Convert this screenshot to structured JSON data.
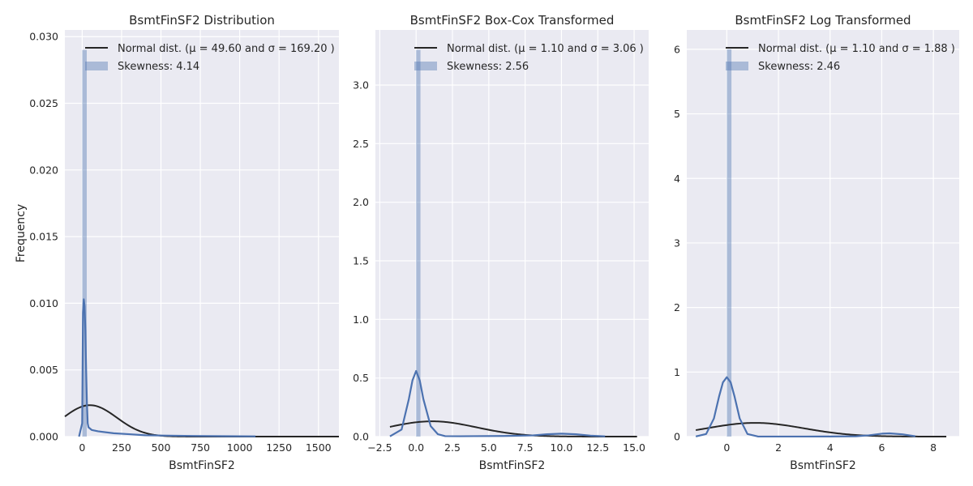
{
  "chart_data": [
    {
      "type": "histogram+kde",
      "title": "BsmtFinSF2 Distribution",
      "xlabel": "BsmtFinSF2",
      "ylabel": "Frequency",
      "xlim": [
        -110,
        1630
      ],
      "ylim": [
        0,
        0.0305
      ],
      "xticks": [
        0,
        250,
        500,
        750,
        1000,
        1250,
        1500
      ],
      "xtick_labels": [
        "0",
        "250",
        "500",
        "750",
        "1000",
        "1250",
        "1500"
      ],
      "yticks": [
        0,
        0.005,
        0.01,
        0.015,
        0.02,
        0.025,
        0.03
      ],
      "ytick_labels": [
        "0.000",
        "0.005",
        "0.010",
        "0.015",
        "0.020",
        "0.025",
        "0.030"
      ],
      "grid": true,
      "legend_position": "top-right",
      "legend": [
        {
          "label": "Normal dist. (μ =  49.60 and σ =  169.20 )",
          "kind": "line"
        },
        {
          "label": "Skewness: 4.14",
          "kind": "patch"
        }
      ],
      "hist_bars": [
        {
          "x0": 0,
          "x1": 29,
          "height": 0.029
        }
      ],
      "kde": {
        "x": [
          -20,
          0,
          5,
          10,
          15,
          20,
          25,
          30,
          35,
          40,
          60,
          100,
          200,
          300,
          400,
          500,
          700,
          900,
          1100
        ],
        "y": [
          0,
          0.001,
          0.0093,
          0.0103,
          0.0098,
          0.008,
          0.005,
          0.0025,
          0.001,
          0.0007,
          0.0005,
          0.0004,
          0.00025,
          0.00018,
          0.0001,
          8e-05,
          5e-05,
          3e-05,
          2e-05
        ]
      },
      "normal_fit": {
        "mu": 49.6,
        "sigma": 169.2,
        "x_range": [
          -110,
          1630
        ]
      }
    },
    {
      "type": "histogram+kde",
      "title": "BsmtFinSF2 Box-Cox Transformed",
      "xlabel": "BsmtFinSF2",
      "ylabel": "",
      "xlim": [
        -2.8,
        16.0
      ],
      "ylim": [
        0,
        3.47
      ],
      "xticks": [
        -2.5,
        0,
        2.5,
        5,
        7.5,
        10,
        12.5,
        15
      ],
      "xtick_labels": [
        "−2.5",
        "0.0",
        "2.5",
        "5.0",
        "7.5",
        "10.0",
        "12.5",
        "15.0"
      ],
      "yticks": [
        0,
        0.5,
        1,
        1.5,
        2,
        2.5,
        3
      ],
      "ytick_labels": [
        "0.0",
        "0.5",
        "1.0",
        "1.5",
        "2.0",
        "2.5",
        "3.0"
      ],
      "grid": true,
      "legend_position": "top-right",
      "legend": [
        {
          "label": "Normal dist. (μ =  1.10 and σ =  3.06 )",
          "kind": "line"
        },
        {
          "label": "Skewness: 2.56",
          "kind": "patch"
        }
      ],
      "hist_bars": [
        {
          "x0": 0,
          "x1": 0.3,
          "height": 3.3
        }
      ],
      "kde": {
        "x": [
          -1.8,
          -1,
          -0.5,
          -0.25,
          0,
          0.25,
          0.5,
          1,
          1.5,
          2,
          3,
          4,
          6,
          8,
          9,
          10,
          11,
          12,
          13
        ],
        "y": [
          0.002,
          0.06,
          0.32,
          0.48,
          0.56,
          0.48,
          0.32,
          0.09,
          0.02,
          0.004,
          0.003,
          0.004,
          0.005,
          0.01,
          0.02,
          0.025,
          0.02,
          0.008,
          0.002
        ]
      },
      "normal_fit": {
        "mu": 1.1,
        "sigma": 3.06,
        "x_range": [
          -1.8,
          15.2
        ]
      }
    },
    {
      "type": "histogram+kde",
      "title": "BsmtFinSF2 Log Transformed",
      "xlabel": "BsmtFinSF2",
      "ylabel": "",
      "xlim": [
        -1.55,
        9.0
      ],
      "ylim": [
        0,
        6.3
      ],
      "xticks": [
        0,
        2,
        4,
        6,
        8
      ],
      "xtick_labels": [
        "0",
        "2",
        "4",
        "6",
        "8"
      ],
      "yticks": [
        0,
        1,
        2,
        3,
        4,
        5,
        6
      ],
      "ytick_labels": [
        "0",
        "1",
        "2",
        "3",
        "4",
        "5",
        "6"
      ],
      "grid": true,
      "legend_position": "top-right",
      "legend": [
        {
          "label": "Normal dist. (μ =  1.10 and σ =  1.88 )",
          "kind": "line"
        },
        {
          "label": "Skewness: 2.46",
          "kind": "patch"
        }
      ],
      "hist_bars": [
        {
          "x0": 0,
          "x1": 0.18,
          "height": 6.0
        }
      ],
      "kde": {
        "x": [
          -1.2,
          -0.8,
          -0.5,
          -0.3,
          -0.15,
          0,
          0.15,
          0.3,
          0.5,
          0.8,
          1.2,
          2,
          3,
          4,
          5,
          5.5,
          6,
          6.3,
          6.8,
          7.3
        ],
        "y": [
          0.002,
          0.04,
          0.28,
          0.62,
          0.84,
          0.92,
          0.84,
          0.62,
          0.28,
          0.04,
          0.002,
          0.001,
          0.001,
          0.002,
          0.005,
          0.02,
          0.045,
          0.05,
          0.035,
          0.005
        ]
      },
      "normal_fit": {
        "mu": 1.1,
        "sigma": 1.88,
        "x_range": [
          -1.2,
          8.5
        ]
      }
    }
  ],
  "colors": {
    "background": "#EAEAF2",
    "grid": "#FFFFFF",
    "kde": "#4C72B0",
    "hist": "#4C72B0",
    "normal": "#262626",
    "text": "#262626"
  }
}
